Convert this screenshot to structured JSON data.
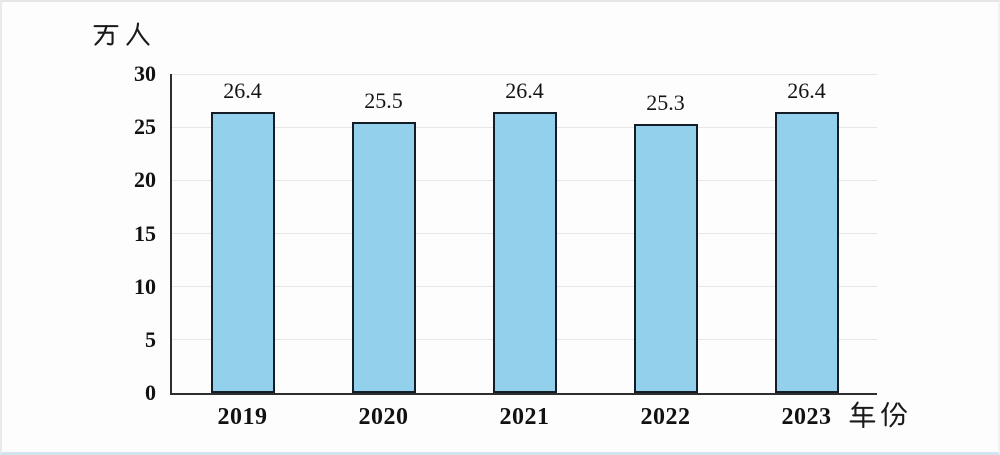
{
  "chart_data": {
    "type": "bar",
    "title": "",
    "ylabel": "万人",
    "xlabel": "年份",
    "categories": [
      "2019",
      "2020",
      "2021",
      "2022",
      "2023"
    ],
    "values": [
      26.4,
      25.5,
      26.4,
      25.3,
      26.4
    ],
    "value_labels": [
      "26.4",
      "25.5",
      "26.4",
      "25.3",
      "26.4"
    ],
    "ylim": [
      0,
      30
    ],
    "yticks": [
      0,
      5,
      10,
      15,
      20,
      25,
      30
    ],
    "grid": true,
    "legend": "none",
    "colors": {
      "bar_fill": "#93d0ec",
      "bar_border": "#141c28",
      "axis": "#2e2e2e",
      "gridline": "#e7e7e7",
      "text": "#111111",
      "background": "#fdfdfd"
    }
  }
}
